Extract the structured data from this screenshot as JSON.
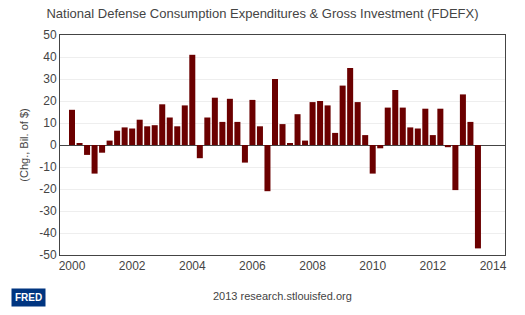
{
  "chart_data": {
    "type": "bar",
    "title": "National Defense Consumption Expenditures & Gross Investment (FDEFX)",
    "ylabel": "(Chg., Bil. of $)",
    "annotations": [
      "2013 research.stlouisfed.org",
      "FRED"
    ],
    "x": [
      2000.0,
      2000.25,
      2000.5,
      2000.75,
      2001.0,
      2001.25,
      2001.5,
      2001.75,
      2002.0,
      2002.25,
      2002.5,
      2002.75,
      2003.0,
      2003.25,
      2003.5,
      2003.75,
      2004.0,
      2004.25,
      2004.5,
      2004.75,
      2005.0,
      2005.25,
      2005.5,
      2005.75,
      2006.0,
      2006.25,
      2006.5,
      2006.75,
      2007.0,
      2007.25,
      2007.5,
      2007.75,
      2008.0,
      2008.25,
      2008.5,
      2008.75,
      2009.0,
      2009.25,
      2009.5,
      2009.75,
      2010.0,
      2010.25,
      2010.5,
      2010.75,
      2011.0,
      2011.25,
      2011.5,
      2011.75,
      2012.0,
      2012.25,
      2012.5,
      2012.75,
      2013.0,
      2013.25,
      2013.5
    ],
    "values": [
      16.0,
      0.5,
      -4.5,
      -13.0,
      -3.5,
      2.0,
      6.5,
      8.0,
      7.5,
      11.5,
      8.5,
      9.0,
      18.5,
      12.5,
      8.5,
      18.0,
      41.0,
      -6.0,
      12.5,
      21.5,
      10.5,
      21.0,
      10.5,
      -8.0,
      20.5,
      8.5,
      -21.0,
      30.0,
      9.5,
      0.5,
      14.0,
      2.0,
      19.5,
      20.0,
      18.0,
      5.5,
      27.0,
      35.0,
      19.5,
      4.5,
      -13.0,
      -1.5,
      17.0,
      25.0,
      17.0,
      8.0,
      7.5,
      16.5,
      4.5,
      16.5,
      -1.0,
      -20.5,
      23.0,
      10.5,
      -47.0
    ],
    "color": "#6b0000",
    "xlim": [
      1999.6,
      2014.4
    ],
    "xticks": [
      2000,
      2002,
      2004,
      2006,
      2008,
      2010,
      2012,
      2014
    ],
    "ylim": [
      -50,
      50
    ],
    "yticks": [
      -50,
      -40,
      -30,
      -20,
      -10,
      0,
      10,
      20,
      30,
      40,
      50
    ],
    "grid": true
  }
}
